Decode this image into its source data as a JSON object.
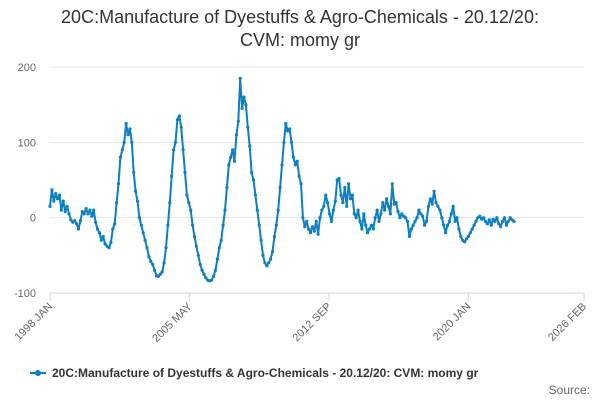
{
  "chart_data": {
    "type": "line",
    "title_lines": [
      "20C:Manufacture of Dyestuffs & Agro-Chemicals - 20.12/20:",
      "CVM: momy gr"
    ],
    "xlabel": "",
    "ylabel": "",
    "ylim": [
      -100,
      200
    ],
    "y_ticks": [
      -100,
      0,
      100,
      200
    ],
    "x_ticks": [
      {
        "label": "1998 JAN",
        "year": 1998.0
      },
      {
        "label": "2005 MAY",
        "year": 2005.33
      },
      {
        "label": "2012 SEP",
        "year": 2012.67
      },
      {
        "label": "2020 JAN",
        "year": 2020.0
      },
      {
        "label": "2026 FEB",
        "year": 2026.08
      }
    ],
    "xlim_years": [
      1998.0,
      2026.08
    ],
    "grid": "horizontal",
    "legend_position": "bottom",
    "source_label": "Source:",
    "series": [
      {
        "name": "20C:Manufacture of Dyestuffs & Agro-Chemicals - 20.12/20: CVM: momy gr",
        "color": "#0b7fc2",
        "points": [
          [
            1998.0,
            15
          ],
          [
            1998.1,
            37
          ],
          [
            1998.2,
            22
          ],
          [
            1998.3,
            32
          ],
          [
            1998.4,
            25
          ],
          [
            1998.5,
            30
          ],
          [
            1998.6,
            10
          ],
          [
            1998.7,
            22
          ],
          [
            1998.8,
            8
          ],
          [
            1998.9,
            15
          ],
          [
            1999.0,
            5
          ],
          [
            1999.1,
            -3
          ],
          [
            1999.2,
            -6
          ],
          [
            1999.3,
            -4
          ],
          [
            1999.4,
            -8
          ],
          [
            1999.5,
            -15
          ],
          [
            1999.6,
            -4
          ],
          [
            1999.7,
            8
          ],
          [
            1999.8,
            5
          ],
          [
            1999.9,
            12
          ],
          [
            2000.0,
            5
          ],
          [
            2000.1,
            10
          ],
          [
            2000.2,
            2
          ],
          [
            2000.3,
            10
          ],
          [
            2000.4,
            -6
          ],
          [
            2000.5,
            -15
          ],
          [
            2000.6,
            -20
          ],
          [
            2000.7,
            -30
          ],
          [
            2000.8,
            -25
          ],
          [
            2000.9,
            -35
          ],
          [
            2001.0,
            -38
          ],
          [
            2001.1,
            -40
          ],
          [
            2001.2,
            -33
          ],
          [
            2001.3,
            -15
          ],
          [
            2001.4,
            -8
          ],
          [
            2001.5,
            20
          ],
          [
            2001.6,
            45
          ],
          [
            2001.7,
            80
          ],
          [
            2001.8,
            90
          ],
          [
            2001.9,
            100
          ],
          [
            2002.0,
            125
          ],
          [
            2002.1,
            110
          ],
          [
            2002.2,
            118
          ],
          [
            2002.3,
            100
          ],
          [
            2002.4,
            60
          ],
          [
            2002.5,
            35
          ],
          [
            2002.6,
            22
          ],
          [
            2002.7,
            0
          ],
          [
            2002.8,
            -10
          ],
          [
            2002.9,
            -20
          ],
          [
            2003.0,
            -30
          ],
          [
            2003.1,
            -40
          ],
          [
            2003.2,
            -52
          ],
          [
            2003.3,
            -58
          ],
          [
            2003.4,
            -62
          ],
          [
            2003.5,
            -70
          ],
          [
            2003.6,
            -77
          ],
          [
            2003.7,
            -78
          ],
          [
            2003.8,
            -75
          ],
          [
            2003.9,
            -72
          ],
          [
            2004.0,
            -60
          ],
          [
            2004.1,
            -40
          ],
          [
            2004.2,
            -10
          ],
          [
            2004.3,
            20
          ],
          [
            2004.4,
            55
          ],
          [
            2004.5,
            90
          ],
          [
            2004.6,
            100
          ],
          [
            2004.7,
            130
          ],
          [
            2004.8,
            135
          ],
          [
            2004.9,
            120
          ],
          [
            2005.0,
            90
          ],
          [
            2005.1,
            60
          ],
          [
            2005.2,
            30
          ],
          [
            2005.3,
            20
          ],
          [
            2005.4,
            10
          ],
          [
            2005.5,
            -10
          ],
          [
            2005.6,
            -25
          ],
          [
            2005.7,
            -38
          ],
          [
            2005.8,
            -50
          ],
          [
            2005.9,
            -62
          ],
          [
            2006.0,
            -70
          ],
          [
            2006.1,
            -75
          ],
          [
            2006.2,
            -80
          ],
          [
            2006.3,
            -83
          ],
          [
            2006.4,
            -84
          ],
          [
            2006.5,
            -83
          ],
          [
            2006.6,
            -78
          ],
          [
            2006.7,
            -70
          ],
          [
            2006.8,
            -55
          ],
          [
            2006.9,
            -40
          ],
          [
            2007.0,
            -30
          ],
          [
            2007.1,
            -10
          ],
          [
            2007.2,
            10
          ],
          [
            2007.3,
            40
          ],
          [
            2007.4,
            70
          ],
          [
            2007.5,
            80
          ],
          [
            2007.6,
            90
          ],
          [
            2007.7,
            75
          ],
          [
            2007.8,
            110
          ],
          [
            2007.9,
            128
          ],
          [
            2008.0,
            185
          ],
          [
            2008.1,
            145
          ],
          [
            2008.2,
            160
          ],
          [
            2008.3,
            150
          ],
          [
            2008.4,
            120
          ],
          [
            2008.5,
            95
          ],
          [
            2008.6,
            60
          ],
          [
            2008.7,
            50
          ],
          [
            2008.8,
            30
          ],
          [
            2008.9,
            10
          ],
          [
            2009.0,
            -10
          ],
          [
            2009.1,
            -30
          ],
          [
            2009.2,
            -50
          ],
          [
            2009.3,
            -60
          ],
          [
            2009.4,
            -64
          ],
          [
            2009.5,
            -60
          ],
          [
            2009.6,
            -55
          ],
          [
            2009.7,
            -45
          ],
          [
            2009.8,
            -25
          ],
          [
            2009.9,
            -10
          ],
          [
            2010.0,
            10
          ],
          [
            2010.1,
            40
          ],
          [
            2010.2,
            70
          ],
          [
            2010.3,
            100
          ],
          [
            2010.4,
            125
          ],
          [
            2010.5,
            115
          ],
          [
            2010.6,
            118
          ],
          [
            2010.7,
            100
          ],
          [
            2010.8,
            80
          ],
          [
            2010.9,
            70
          ],
          [
            2011.0,
            75
          ],
          [
            2011.1,
            55
          ],
          [
            2011.2,
            45
          ],
          [
            2011.3,
            0
          ],
          [
            2011.4,
            -12
          ],
          [
            2011.5,
            -5
          ],
          [
            2011.6,
            -15
          ],
          [
            2011.7,
            -20
          ],
          [
            2011.8,
            -12
          ],
          [
            2011.9,
            -18
          ],
          [
            2012.0,
            -5
          ],
          [
            2012.1,
            -22
          ],
          [
            2012.2,
            0
          ],
          [
            2012.3,
            10
          ],
          [
            2012.4,
            15
          ],
          [
            2012.5,
            30
          ],
          [
            2012.6,
            20
          ],
          [
            2012.7,
            5
          ],
          [
            2012.8,
            -5
          ],
          [
            2012.9,
            10
          ],
          [
            2013.0,
            22
          ],
          [
            2013.1,
            50
          ],
          [
            2013.2,
            52
          ],
          [
            2013.3,
            30
          ],
          [
            2013.4,
            20
          ],
          [
            2013.5,
            40
          ],
          [
            2013.6,
            15
          ],
          [
            2013.7,
            45
          ],
          [
            2013.8,
            25
          ],
          [
            2013.9,
            30
          ],
          [
            2014.0,
            5
          ],
          [
            2014.1,
            0
          ],
          [
            2014.2,
            10
          ],
          [
            2014.3,
            -5
          ],
          [
            2014.4,
            -15
          ],
          [
            2014.5,
            5
          ],
          [
            2014.6,
            -10
          ],
          [
            2014.7,
            -20
          ],
          [
            2014.8,
            -15
          ],
          [
            2014.9,
            -10
          ],
          [
            2015.0,
            -15
          ],
          [
            2015.1,
            0
          ],
          [
            2015.2,
            10
          ],
          [
            2015.3,
            -5
          ],
          [
            2015.4,
            5
          ],
          [
            2015.5,
            20
          ],
          [
            2015.6,
            10
          ],
          [
            2015.7,
            25
          ],
          [
            2015.8,
            15
          ],
          [
            2015.9,
            5
          ],
          [
            2016.0,
            45
          ],
          [
            2016.1,
            18
          ],
          [
            2016.2,
            20
          ],
          [
            2016.3,
            8
          ],
          [
            2016.4,
            0
          ],
          [
            2016.5,
            5
          ],
          [
            2016.6,
            2
          ],
          [
            2016.7,
            0
          ],
          [
            2016.8,
            -5
          ],
          [
            2016.9,
            -25
          ],
          [
            2017.0,
            -15
          ],
          [
            2017.1,
            -10
          ],
          [
            2017.2,
            -5
          ],
          [
            2017.3,
            0
          ],
          [
            2017.4,
            10
          ],
          [
            2017.5,
            5
          ],
          [
            2017.6,
            2
          ],
          [
            2017.7,
            -10
          ],
          [
            2017.8,
            -5
          ],
          [
            2017.9,
            15
          ],
          [
            2018.0,
            25
          ],
          [
            2018.1,
            18
          ],
          [
            2018.2,
            35
          ],
          [
            2018.3,
            20
          ],
          [
            2018.4,
            15
          ],
          [
            2018.5,
            10
          ],
          [
            2018.6,
            0
          ],
          [
            2018.7,
            -10
          ],
          [
            2018.8,
            -20
          ],
          [
            2018.9,
            -10
          ],
          [
            2019.0,
            -5
          ],
          [
            2019.1,
            5
          ],
          [
            2019.2,
            15
          ],
          [
            2019.3,
            -5
          ],
          [
            2019.4,
            0
          ],
          [
            2019.5,
            -15
          ],
          [
            2019.6,
            -25
          ],
          [
            2019.7,
            -30
          ],
          [
            2019.8,
            -32
          ],
          [
            2019.9,
            -28
          ],
          [
            2020.0,
            -25
          ],
          [
            2020.1,
            -20
          ],
          [
            2020.2,
            -15
          ],
          [
            2020.3,
            -10
          ],
          [
            2020.4,
            -5
          ],
          [
            2020.5,
            0
          ],
          [
            2020.6,
            2
          ],
          [
            2020.7,
            -2
          ],
          [
            2020.8,
            0
          ],
          [
            2020.9,
            -5
          ],
          [
            2021.0,
            -8
          ],
          [
            2021.1,
            -3
          ],
          [
            2021.2,
            -10
          ],
          [
            2021.3,
            -2
          ],
          [
            2021.4,
            -5
          ],
          [
            2021.5,
            0
          ],
          [
            2021.6,
            -8
          ],
          [
            2021.7,
            -12
          ],
          [
            2021.8,
            -5
          ],
          [
            2021.9,
            0
          ],
          [
            2022.0,
            -10
          ],
          [
            2022.1,
            -5
          ],
          [
            2022.2,
            0
          ],
          [
            2022.3,
            -3
          ],
          [
            2022.4,
            -5
          ]
        ]
      }
    ]
  }
}
